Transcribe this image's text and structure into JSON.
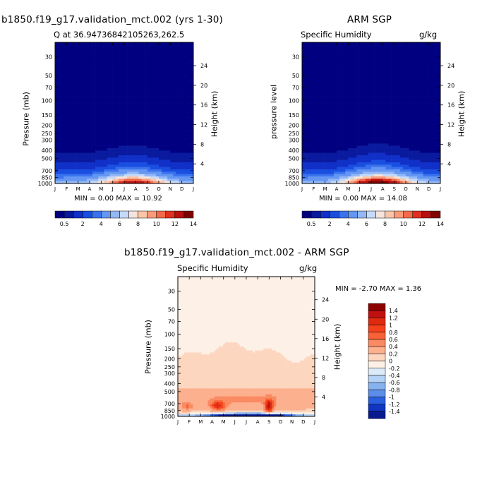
{
  "panels": [
    {
      "title": "b1850.f19_g17.validation_mct.002 (yrs 1-30)",
      "left_label": "Q at 36.94736842105263,262.5",
      "right_label": "",
      "ylabel": "Pressure (mb)",
      "y2label": "Height (km)",
      "minmax": "MIN =    0.00 MAX =   10.92"
    },
    {
      "title": "ARM SGP",
      "left_label": "Specific Humidity",
      "right_label": "g/kg",
      "ylabel": "pressure level",
      "y2label": "Height (km)",
      "minmax": "MIN =    0.00 MAX =   14.08"
    },
    {
      "title": "b1850.f19_g17.validation_mct.002 - ARM SGP",
      "left_label": "Specific Humidity",
      "right_label": "g/kg",
      "ylabel": "Pressure (mb)",
      "y2label": "Height (km)",
      "minmax": "MIN =   -2.70 MAX =    1.36"
    }
  ],
  "chart_data": [
    {
      "type": "heatmap",
      "title": "b1850.f19_g17.validation_mct.002 (yrs 1-30)",
      "variable": "Q at 36.94736842105263,262.5",
      "xlabel": "",
      "ylabel": "Pressure (mb)",
      "y2label": "Height (km)",
      "x_ticks": [
        "J",
        "F",
        "M",
        "A",
        "M",
        "J",
        "J",
        "A",
        "S",
        "O",
        "N",
        "D",
        "J"
      ],
      "y_ticks": [
        30,
        50,
        70,
        100,
        150,
        200,
        250,
        300,
        400,
        500,
        700,
        850,
        1000
      ],
      "y2_ticks": [
        4,
        8,
        12,
        16,
        20,
        24
      ],
      "y_scale": "log",
      "ylim": [
        1000,
        20
      ],
      "min": 0.0,
      "max": 10.92,
      "colorbar_labels": [
        "0.5",
        "2",
        "4",
        "6",
        "8",
        "10",
        "12",
        "14"
      ],
      "colorbar_colors": [
        "#000080",
        "#0a1a9e",
        "#1030c8",
        "#1a4ee0",
        "#3a72ee",
        "#6496f2",
        "#94b8f6",
        "#c6daf9",
        "#f4e4dc",
        "#fbc5a8",
        "#fa9a78",
        "#f26a4a",
        "#e03020",
        "#b81010",
        "#800000"
      ],
      "peak_month_index": 6.8,
      "peak_value": 10.92
    },
    {
      "type": "heatmap",
      "title": "ARM SGP",
      "variable": "Specific Humidity",
      "units": "g/kg",
      "ylabel": "pressure level",
      "y2label": "Height (km)",
      "x_ticks": [
        "J",
        "F",
        "M",
        "A",
        "M",
        "J",
        "J",
        "A",
        "S",
        "O",
        "N",
        "D",
        "J"
      ],
      "y_ticks": [
        30,
        50,
        70,
        100,
        150,
        200,
        250,
        300,
        400,
        500,
        700,
        850,
        1000
      ],
      "y2_ticks": [
        4,
        8,
        12,
        16,
        20,
        24
      ],
      "y_scale": "log",
      "min": 0.0,
      "max": 14.08,
      "colorbar_labels": [
        "0.5",
        "2",
        "4",
        "6",
        "8",
        "10",
        "12",
        "14"
      ],
      "peak_month_index": 6.6,
      "peak_value": 14.08
    },
    {
      "type": "heatmap",
      "title": "b1850.f19_g17.validation_mct.002 - ARM SGP",
      "variable": "Specific Humidity",
      "units": "g/kg",
      "ylabel": "Pressure (mb)",
      "y2label": "Height (km)",
      "x_ticks": [
        "J",
        "F",
        "M",
        "A",
        "M",
        "J",
        "J",
        "A",
        "S",
        "O",
        "N",
        "D",
        "J"
      ],
      "y_ticks": [
        30,
        50,
        70,
        100,
        150,
        200,
        250,
        300,
        400,
        500,
        700,
        850,
        1000
      ],
      "y2_ticks": [
        4,
        8,
        12,
        16,
        20,
        24
      ],
      "y_scale": "log",
      "min": -2.7,
      "max": 1.36,
      "colorbar_labels": [
        "1.4",
        "1.2",
        "1",
        "0.8",
        "0.6",
        "0.4",
        "0.2",
        "0",
        "-0.2",
        "-0.4",
        "-0.6",
        "-0.8",
        "-1",
        "-1.2",
        "-1.4"
      ],
      "colorbar_colors": [
        "#8b0000",
        "#c01010",
        "#e02a10",
        "#f4401c",
        "#f86236",
        "#fa8a62",
        "#fcb08e",
        "#fdd6bf",
        "#fdf0e6",
        "#dcebfa",
        "#b4d2f6",
        "#86b2f0",
        "#5a8ee8",
        "#2a5ee0",
        "#1035c0",
        "#081a90"
      ],
      "surface_min_value": -2.7,
      "max_locations_months": [
        "A",
        "S"
      ]
    }
  ]
}
